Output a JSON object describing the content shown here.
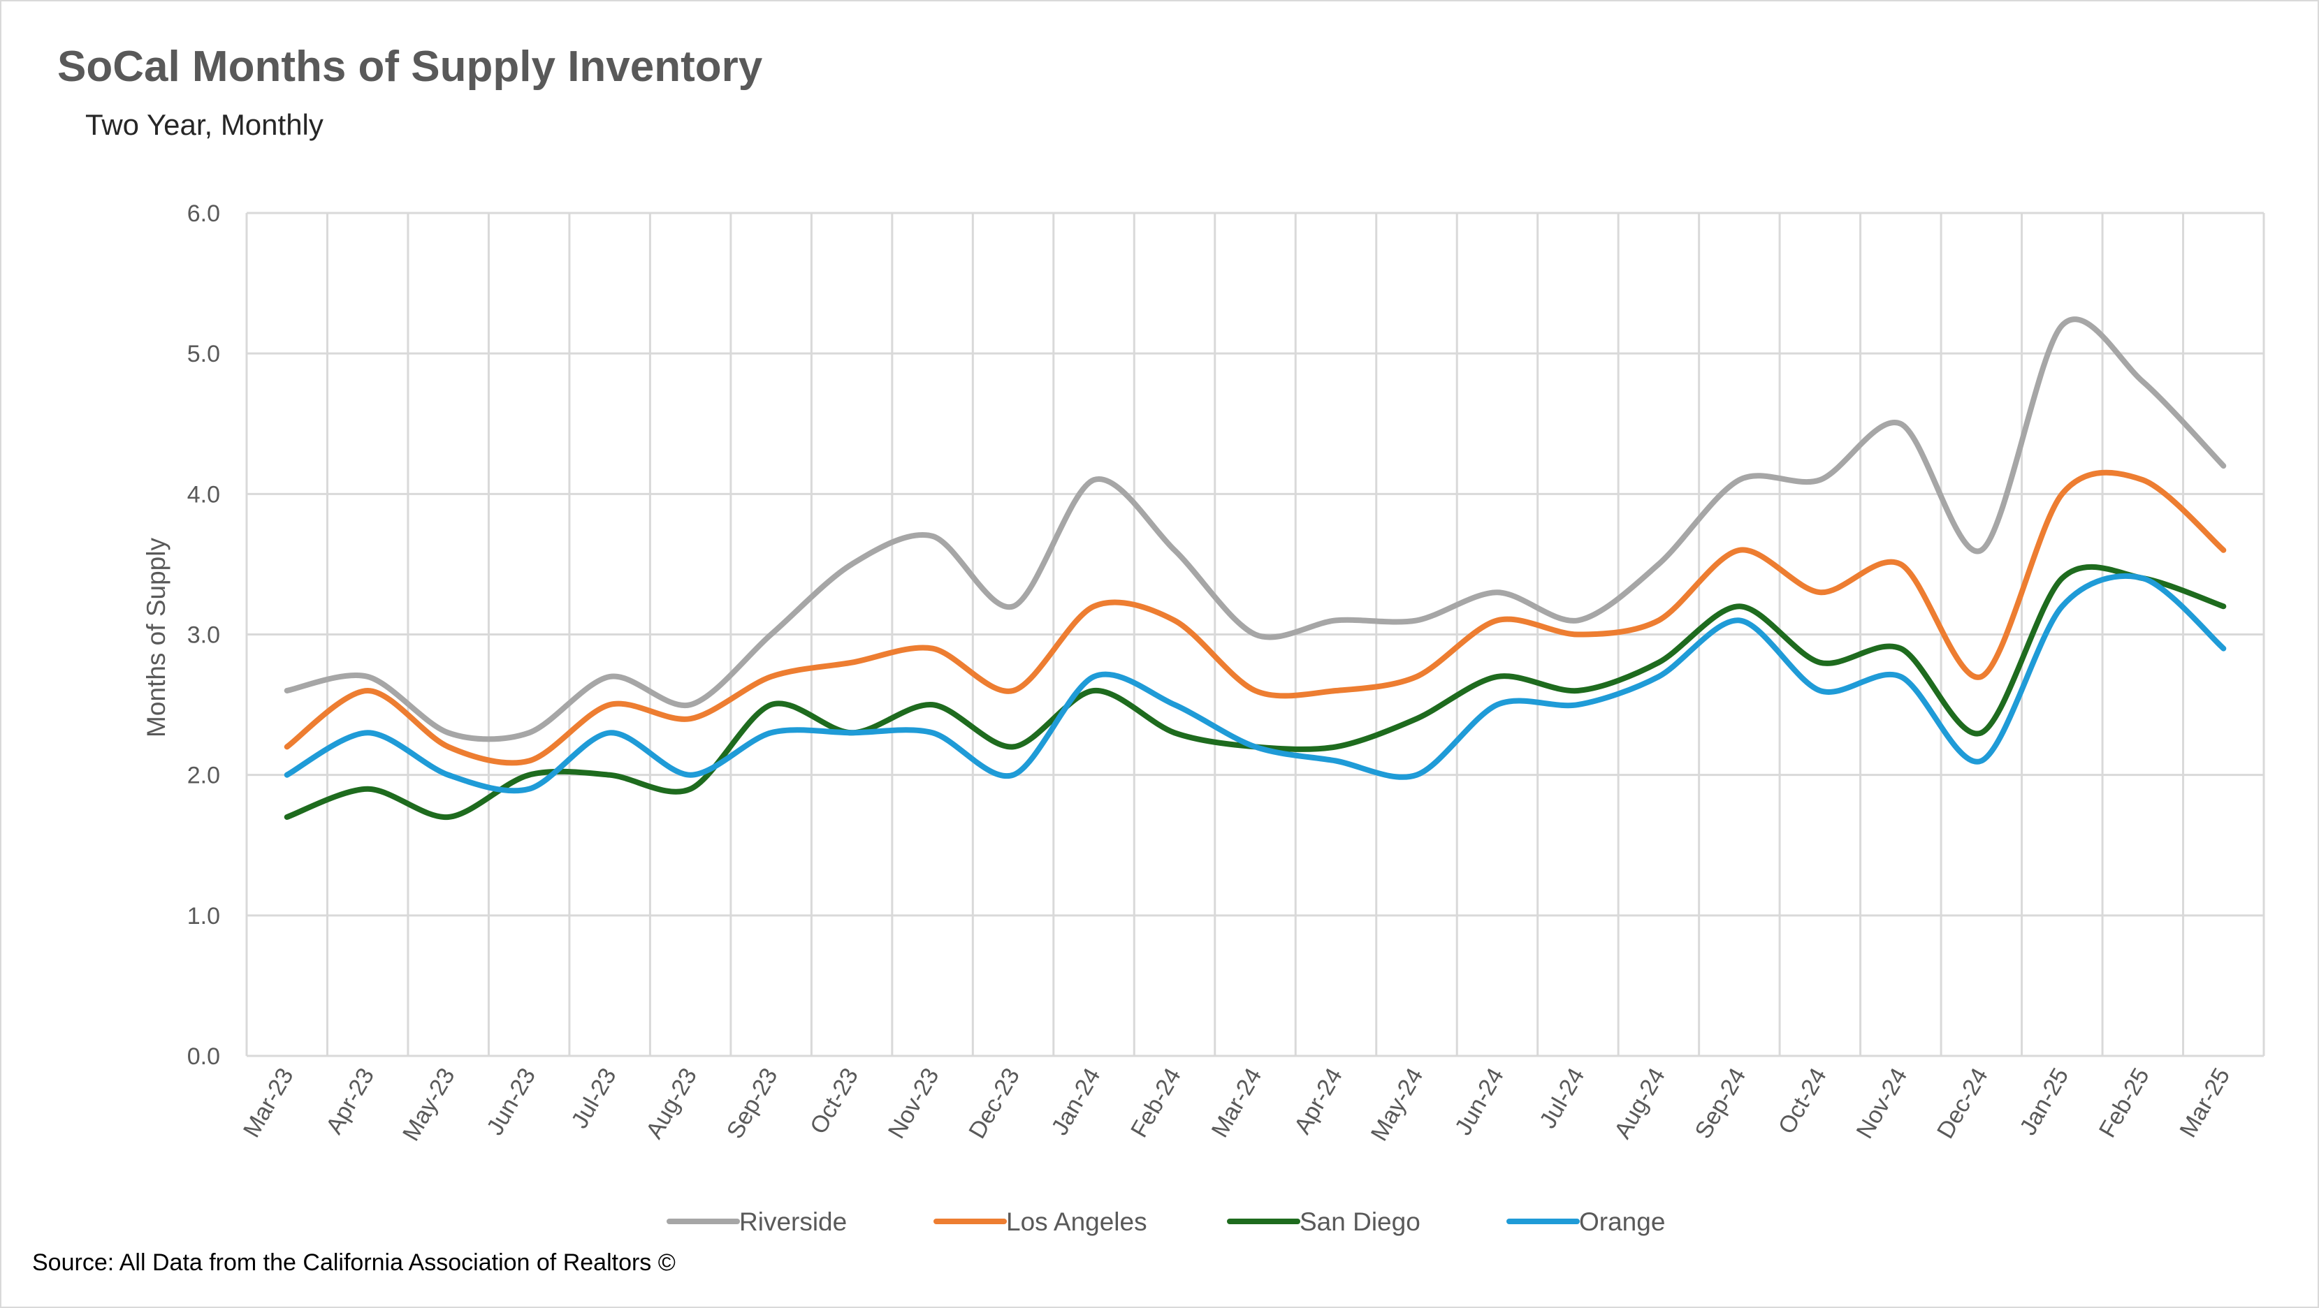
{
  "chart_data": {
    "type": "line",
    "title": "SoCal Months of Supply Inventory",
    "subtitle": "Two Year, Monthly",
    "ylabel": "Months of Supply",
    "xlabel": "",
    "ylim": [
      0,
      6
    ],
    "yticks": [
      "0.0",
      "1.0",
      "2.0",
      "3.0",
      "4.0",
      "5.0",
      "6.0"
    ],
    "grid": true,
    "smooth": true,
    "legend_position": "bottom",
    "categories": [
      "Mar-23",
      "Apr-23",
      "May-23",
      "Jun-23",
      "Jul-23",
      "Aug-23",
      "Sep-23",
      "Oct-23",
      "Nov-23",
      "Dec-23",
      "Jan-24",
      "Feb-24",
      "Mar-24",
      "Apr-24",
      "May-24",
      "Jun-24",
      "Jul-24",
      "Aug-24",
      "Sep-24",
      "Oct-24",
      "Nov-24",
      "Dec-24",
      "Jan-25",
      "Feb-25",
      "Mar-25"
    ],
    "series": [
      {
        "name": "Riverside",
        "color": "#a6a6a6",
        "values": [
          2.6,
          2.7,
          2.3,
          2.3,
          2.7,
          2.5,
          3.0,
          3.5,
          3.7,
          3.2,
          4.1,
          3.6,
          3.0,
          3.1,
          3.1,
          3.3,
          3.1,
          3.5,
          4.1,
          4.1,
          4.5,
          3.6,
          5.2,
          4.8,
          4.2
        ]
      },
      {
        "name": "Los Angeles",
        "color": "#ed7d31",
        "values": [
          2.2,
          2.6,
          2.2,
          2.1,
          2.5,
          2.4,
          2.7,
          2.8,
          2.9,
          2.6,
          3.2,
          3.1,
          2.6,
          2.6,
          2.7,
          3.1,
          3.0,
          3.1,
          3.6,
          3.3,
          3.5,
          2.7,
          4.0,
          4.1,
          3.6
        ]
      },
      {
        "name": "San Diego",
        "color": "#1e6b1e",
        "values": [
          1.7,
          1.9,
          1.7,
          2.0,
          2.0,
          1.9,
          2.5,
          2.3,
          2.5,
          2.2,
          2.6,
          2.3,
          2.2,
          2.2,
          2.4,
          2.7,
          2.6,
          2.8,
          3.2,
          2.8,
          2.9,
          2.3,
          3.4,
          3.4,
          3.2
        ]
      },
      {
        "name": "Orange",
        "color": "#1f9bd7",
        "values": [
          2.0,
          2.3,
          2.0,
          1.9,
          2.3,
          2.0,
          2.3,
          2.3,
          2.3,
          2.0,
          2.7,
          2.5,
          2.2,
          2.1,
          2.0,
          2.5,
          2.5,
          2.7,
          3.1,
          2.6,
          2.7,
          2.1,
          3.2,
          3.4,
          2.9
        ]
      }
    ]
  },
  "source": "Source: All Data from the California Association of Realtors ©"
}
